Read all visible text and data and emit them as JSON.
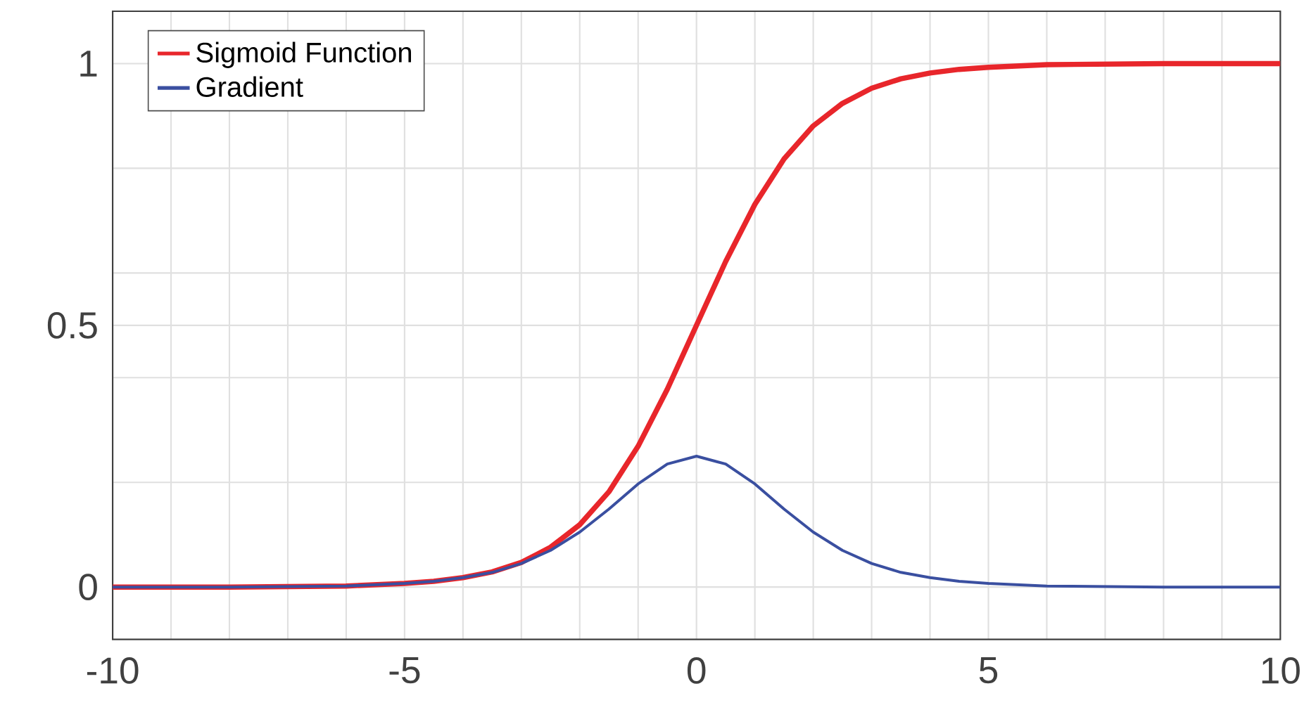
{
  "chart_data": {
    "type": "line",
    "xlim": [
      -10,
      10
    ],
    "ylim": [
      -0.1,
      1.1
    ],
    "xticks": [
      -10,
      {
        "value": -9,
        "label": null
      },
      {
        "value": -8,
        "label": null
      },
      {
        "value": -7,
        "label": null
      },
      {
        "value": -6,
        "label": null
      },
      -5,
      {
        "value": -4,
        "label": null
      },
      {
        "value": -3,
        "label": null
      },
      {
        "value": -2,
        "label": null
      },
      {
        "value": -1,
        "label": null
      },
      0,
      {
        "value": 1,
        "label": null
      },
      {
        "value": 2,
        "label": null
      },
      {
        "value": 3,
        "label": null
      },
      {
        "value": 4,
        "label": null
      },
      5,
      {
        "value": 6,
        "label": null
      },
      {
        "value": 7,
        "label": null
      },
      {
        "value": 8,
        "label": null
      },
      {
        "value": 9,
        "label": null
      },
      10
    ],
    "yticks": [
      0,
      {
        "value": 0.2,
        "label": null
      },
      {
        "value": 0.4,
        "label": null
      },
      0.5,
      {
        "value": 0.6,
        "label": null
      },
      {
        "value": 0.8,
        "label": null
      },
      1
    ],
    "grid": true,
    "legend": "top left",
    "marker": "none",
    "line_style": "solid",
    "x": [
      -10,
      -8,
      -7,
      -6,
      -5,
      -4.5,
      -4,
      -3.5,
      -3,
      -2.5,
      -2,
      -1.5,
      -1,
      -0.5,
      0,
      0.5,
      1,
      1.5,
      2,
      2.5,
      3,
      3.5,
      4,
      4.5,
      5,
      6,
      7,
      8,
      10
    ],
    "series": [
      {
        "name": "Sigmoid Function",
        "color": "#e8262b",
        "values": [
          0,
          0,
          0.001,
          0.002,
          0.007,
          0.011,
          0.018,
          0.029,
          0.047,
          0.076,
          0.119,
          0.182,
          0.269,
          0.378,
          0.5,
          0.622,
          0.731,
          0.818,
          0.881,
          0.924,
          0.953,
          0.971,
          0.982,
          0.989,
          0.993,
          0.998,
          0.999,
          1,
          1
        ]
      },
      {
        "name": "Gradient",
        "color": "#3a4fa0",
        "values": [
          0,
          0,
          0.001,
          0.002,
          0.007,
          0.011,
          0.018,
          0.028,
          0.045,
          0.07,
          0.105,
          0.149,
          0.197,
          0.235,
          0.25,
          0.235,
          0.197,
          0.149,
          0.105,
          0.07,
          0.045,
          0.028,
          0.018,
          0.011,
          0.007,
          0.002,
          0.001,
          0,
          0
        ]
      }
    ]
  }
}
